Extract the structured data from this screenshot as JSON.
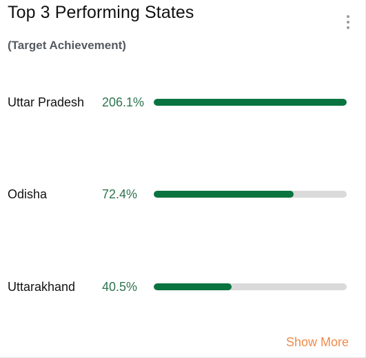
{
  "header": {
    "title": "Top 3 Performing States",
    "subtitle": "(Target Achievement)",
    "menu_icon": "kebab-menu-icon"
  },
  "states": [
    {
      "name": "Uttar Pradesh",
      "percent_label": "206.1%",
      "achievement_percent": 206.1
    },
    {
      "name": "Odisha",
      "percent_label": "72.4%",
      "achievement_percent": 72.4
    },
    {
      "name": "Uttarakhand",
      "percent_label": "40.5%",
      "achievement_percent": 40.5
    }
  ],
  "footer": {
    "show_more_label": "Show More"
  },
  "colors": {
    "bar_fill": "#0a7440",
    "bar_track": "#dadada",
    "percent_text": "#2e7450",
    "show_more": "#f08a4b"
  }
}
